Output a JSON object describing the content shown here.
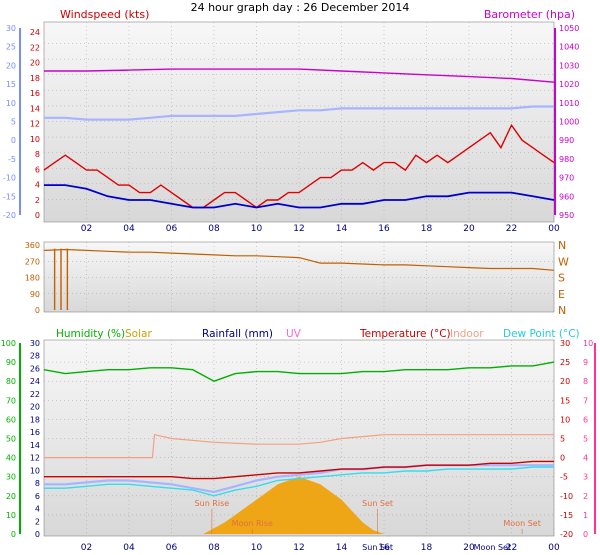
{
  "header": {
    "title": "24 hour graph day : 26 December 2014"
  },
  "colors": {
    "plot_bg_top": "#f7f7f7",
    "plot_bg_bottom": "#d9d9d9",
    "grid": "#9a9a9a",
    "windspeed": "#e00000",
    "wind_avg": "#0000cc",
    "wind_temp_blue": "#a8b4ff",
    "barometer": "#cc00cc",
    "direction": "#c06000",
    "humidity": "#00b000",
    "solar": "#f0a000",
    "rainfall": "#000080",
    "uv": "#ff66cc",
    "temperature": "#cc0000",
    "indoor": "#f4a080",
    "dew_point": "#33ddee",
    "left_axis": "#7a8cff",
    "green_axis": "#00b000",
    "pink_axis": "#ff3399"
  },
  "x_axis": {
    "ticks": [
      "02",
      "04",
      "06",
      "08",
      "10",
      "12",
      "14",
      "16",
      "18",
      "20",
      "22",
      "00"
    ]
  },
  "chart_data": [
    {
      "type": "line",
      "name": "wind-panel",
      "title": "Windspeed (kts)",
      "right_title": "Barometer (hpa)",
      "left_axis_ticks": [
        "24",
        "22",
        "20",
        "18",
        "16",
        "14",
        "12",
        "10",
        "8",
        "6",
        "4",
        "2",
        "0"
      ],
      "outer_left_ticks": [
        "30",
        "25",
        "20",
        "15",
        "10",
        "5",
        "0",
        "-5",
        "-10",
        "-15",
        "-20"
      ],
      "right_axis_ticks": [
        "1050",
        "1040",
        "1030",
        "1020",
        "1010",
        "1000",
        "990",
        "980",
        "970",
        "960",
        "950"
      ],
      "ylim": [
        0,
        25
      ],
      "series": [
        {
          "name": "Windspeed (kts)",
          "color": "#e00000",
          "x": [
            0,
            0.5,
            1,
            1.5,
            2,
            2.5,
            3,
            3.5,
            4,
            4.5,
            5,
            5.5,
            6,
            6.5,
            7,
            7.5,
            8,
            8.5,
            9,
            9.5,
            10,
            10.5,
            11,
            11.5,
            12,
            12.5,
            13,
            13.5,
            14,
            14.5,
            15,
            15.5,
            16,
            16.5,
            17,
            17.5,
            18,
            18.5,
            19,
            19.5,
            20,
            20.5,
            21,
            21.5,
            22,
            22.5,
            23,
            23.5,
            24
          ],
          "values": [
            6,
            7,
            8,
            7,
            6,
            6,
            5,
            4,
            4,
            3,
            3,
            4,
            3,
            2,
            1,
            1,
            2,
            3,
            3,
            2,
            1,
            2,
            2,
            3,
            3,
            4,
            5,
            5,
            6,
            6,
            7,
            6,
            7,
            7,
            6,
            8,
            7,
            8,
            7,
            8,
            9,
            10,
            11,
            9,
            12,
            10,
            9,
            8,
            7
          ]
        },
        {
          "name": "Wind avg",
          "color": "#0000cc",
          "x": [
            0,
            1,
            2,
            3,
            4,
            5,
            6,
            7,
            8,
            9,
            10,
            11,
            12,
            13,
            14,
            15,
            16,
            17,
            18,
            19,
            20,
            21,
            22,
            23,
            24
          ],
          "values": [
            4,
            4,
            3.5,
            2.5,
            2,
            2,
            1.5,
            1,
            1,
            1.5,
            1,
            1.5,
            1,
            1,
            1.5,
            1.5,
            2,
            2,
            2.5,
            2.5,
            3,
            3,
            3,
            2.5,
            2
          ]
        },
        {
          "name": "Temp (outer scale)",
          "color": "#a8b4ff",
          "x": [
            0,
            1,
            2,
            3,
            4,
            5,
            6,
            7,
            8,
            9,
            10,
            11,
            12,
            13,
            14,
            15,
            16,
            17,
            18,
            19,
            20,
            21,
            22,
            23,
            24
          ],
          "values": [
            6,
            6,
            5.5,
            5.5,
            5.5,
            6,
            6.5,
            6.5,
            6.5,
            6.5,
            7,
            7.5,
            8,
            8,
            8.5,
            8.5,
            8.5,
            8.5,
            8.5,
            8.5,
            8.5,
            8.5,
            8.5,
            9,
            9
          ]
        },
        {
          "name": "Barometer (hpa)",
          "color": "#cc00cc",
          "x": [
            0,
            2,
            4,
            6,
            8,
            10,
            12,
            14,
            16,
            18,
            20,
            22,
            24
          ],
          "values": [
            1027,
            1027,
            1027.5,
            1028,
            1028,
            1028,
            1028,
            1027,
            1026,
            1025,
            1024,
            1023,
            1021
          ]
        }
      ]
    },
    {
      "type": "line",
      "name": "direction-panel",
      "left_axis_ticks": [
        "360",
        "270",
        "180",
        "90",
        "0"
      ],
      "right_labels": [
        "N",
        "W",
        "S",
        "E",
        "N"
      ],
      "ylim": [
        0,
        360
      ],
      "series": [
        {
          "name": "Wind direction",
          "color": "#c06000",
          "x": [
            0,
            1,
            2,
            3,
            4,
            5,
            6,
            7,
            8,
            9,
            10,
            11,
            12,
            13,
            14,
            15,
            16,
            17,
            18,
            19,
            20,
            21,
            22,
            23,
            24
          ],
          "values": [
            330,
            335,
            330,
            325,
            320,
            320,
            315,
            310,
            305,
            300,
            300,
            295,
            290,
            260,
            260,
            255,
            250,
            250,
            245,
            240,
            235,
            230,
            230,
            230,
            220
          ]
        }
      ]
    },
    {
      "type": "line",
      "name": "weather-panel",
      "legend": [
        "Humidity (%)",
        "Solar",
        "Rainfall (mm)",
        "UV",
        "Temperature (°C)",
        "Indoor",
        "Dew Point (°C)"
      ],
      "humidity_ticks": [
        "100",
        "90",
        "80",
        "70",
        "60",
        "50",
        "40",
        "30",
        "20",
        "10",
        "0"
      ],
      "rain_ticks": [
        "30",
        "28",
        "26",
        "24",
        "22",
        "20",
        "18",
        "16",
        "14",
        "12",
        "10",
        "8",
        "6",
        "4",
        "2",
        "0"
      ],
      "temp_ticks": [
        "30",
        "25",
        "20",
        "15",
        "10",
        "5",
        "0",
        "-5",
        "-10",
        "-15",
        "-20"
      ],
      "uv_ticks": [
        "10",
        "9",
        "8",
        "7",
        "6",
        "5",
        "4",
        "3",
        "2",
        "1",
        "0"
      ],
      "annotations": [
        "Sun Rise",
        "Sun Set",
        "Moon Rise",
        "Moon Set",
        "Moon Set",
        "Sun Set"
      ],
      "series": [
        {
          "name": "Humidity (%)",
          "color": "#00b000",
          "x": [
            0,
            1,
            2,
            3,
            4,
            5,
            6,
            7,
            8,
            9,
            10,
            11,
            12,
            13,
            14,
            15,
            16,
            17,
            18,
            19,
            20,
            21,
            22,
            23,
            24
          ],
          "values": [
            86,
            84,
            85,
            86,
            86,
            87,
            87,
            86,
            80,
            84,
            85,
            85,
            84,
            84,
            84,
            85,
            85,
            86,
            86,
            86,
            87,
            87,
            88,
            88,
            90
          ]
        },
        {
          "name": "Temperature (°C)",
          "color": "#cc0000",
          "x": [
            0,
            1,
            2,
            3,
            4,
            5,
            6,
            7,
            8,
            9,
            10,
            11,
            12,
            13,
            14,
            15,
            16,
            17,
            18,
            19,
            20,
            21,
            22,
            23,
            24
          ],
          "values": [
            -5,
            -5,
            -5,
            -5,
            -5,
            -5,
            -5,
            -5.5,
            -5.5,
            -5,
            -4.5,
            -4,
            -4,
            -3.5,
            -3,
            -3,
            -2.5,
            -2.5,
            -2,
            -2,
            -2,
            -1.5,
            -1.5,
            -1,
            -1
          ]
        },
        {
          "name": "Indoor",
          "color": "#f4a080",
          "x": [
            0,
            2,
            4,
            5.1,
            5.2,
            6,
            8,
            10,
            12,
            13,
            14,
            16,
            18,
            20,
            22,
            24
          ],
          "values": [
            0,
            0,
            0,
            0,
            6,
            5,
            4,
            3.5,
            3.5,
            4,
            5,
            6,
            6,
            6,
            6,
            6
          ]
        },
        {
          "name": "Dew Point (°C)",
          "color": "#33ddee",
          "x": [
            0,
            1,
            2,
            3,
            4,
            5,
            6,
            7,
            8,
            9,
            10,
            11,
            12,
            13,
            14,
            15,
            16,
            17,
            18,
            19,
            20,
            21,
            22,
            23,
            24
          ],
          "values": [
            -8,
            -8,
            -7.5,
            -7,
            -7,
            -7.5,
            -8,
            -8.5,
            -10,
            -8.5,
            -7.5,
            -6,
            -5.5,
            -5,
            -4.5,
            -4,
            -4,
            -3.5,
            -3.5,
            -3,
            -3,
            -3,
            -3,
            -2.5,
            -2.5
          ]
        },
        {
          "name": "Temp min (blue band)",
          "color": "#a8b4ff",
          "x": [
            0,
            1,
            2,
            3,
            4,
            5,
            6,
            7,
            8,
            9,
            10,
            11,
            12,
            13,
            14,
            15,
            16,
            17,
            18,
            19,
            20,
            21,
            22,
            23,
            24
          ],
          "values": [
            -7,
            -7,
            -6.5,
            -6,
            -6,
            -6.5,
            -7,
            -8,
            -9,
            -7.5,
            -6,
            -5,
            -4.5,
            -4,
            -3,
            -3,
            -2.5,
            -2.5,
            -2,
            -2,
            -2,
            -2,
            -2,
            -2,
            -2
          ]
        },
        {
          "name": "Solar",
          "color": "#f0a000",
          "x": [
            7.5,
            8,
            8.5,
            9,
            9.5,
            10,
            10.5,
            11,
            11.5,
            12,
            12.5,
            13,
            13.5,
            14,
            14.5,
            15,
            15.5,
            16
          ],
          "values": [
            0,
            0.3,
            0.6,
            1,
            1.4,
            1.8,
            2.2,
            2.6,
            2.8,
            3,
            2.8,
            2.6,
            2.2,
            1.8,
            1.2,
            0.6,
            0.2,
            0
          ]
        }
      ]
    }
  ]
}
